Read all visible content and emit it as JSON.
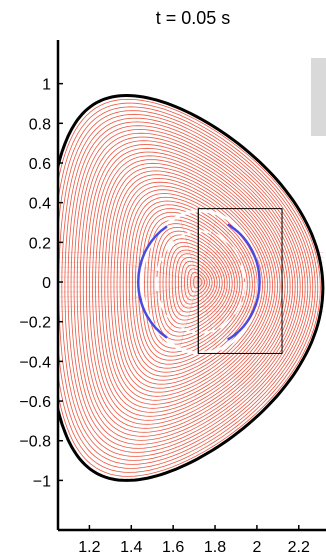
{
  "chart_data": {
    "type": "line",
    "title": "t = 0.05 s",
    "xlabel": "",
    "ylabel": "",
    "xlim": [
      1.05,
      2.33
    ],
    "ylim": [
      -1.25,
      1.22
    ],
    "x_ticks": [
      1.2,
      1.4,
      1.6,
      1.8,
      2,
      2.2
    ],
    "x_tick_labels": [
      "1.2",
      "1.4",
      "1.6",
      "1.8",
      "2",
      "2.2"
    ],
    "y_ticks": [
      1,
      0.8,
      0.6,
      0.4,
      0.2,
      0,
      -0.2,
      -0.4,
      -0.6,
      -0.8,
      -1
    ],
    "y_tick_labels": [
      "1",
      "0.8",
      "0.6",
      "0.4",
      "0.2",
      "0",
      "−0.2",
      "−0.4",
      "−0.6",
      "−0.8",
      "−1"
    ],
    "grid": false,
    "boundary": {
      "r0": 1.655,
      "a": 0.66,
      "kappa": 1.47,
      "delta": 0.42,
      "z0": -0.03,
      "color": "#000000"
    },
    "flux_surfaces": {
      "count": 48,
      "color": "#e8452c",
      "axis": [
        1.72,
        0.0
      ]
    },
    "separatrix_circle": {
      "center": [
        1.73,
        0.0
      ],
      "r": 0.28,
      "color": "#ffffff"
    },
    "inner_circle_dashed": {
      "center": [
        1.73,
        0.0
      ],
      "r": 0.21,
      "color": "#ffffff"
    },
    "blue_arc": {
      "center": [
        1.73,
        0.0
      ],
      "rx": 0.29,
      "rz": 0.33,
      "color": "#4a4ae0"
    },
    "box": {
      "r": [
        1.72,
        2.12
      ],
      "z": [
        -0.36,
        0.37
      ],
      "color": "#000000"
    },
    "vertical_line": {
      "r": 1.72,
      "z": [
        -0.36,
        0.37
      ],
      "color": "#000000"
    },
    "scrollbar_color": "#d9d9d9"
  }
}
